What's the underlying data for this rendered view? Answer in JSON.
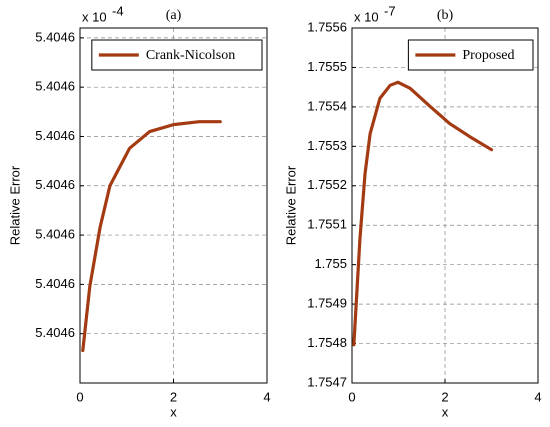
{
  "chart_data": [
    {
      "type": "line",
      "title": "(a)",
      "xlabel": "x",
      "ylabel": "Relative Error",
      "axis_multiplier": {
        "base": "x 10",
        "exponent": "-4"
      },
      "x": [
        0.06,
        0.21,
        0.43,
        0.64,
        1.06,
        1.49,
        2.0,
        2.55,
        3.0
      ],
      "series": [
        {
          "name": "Crank-Nicolson",
          "color": "#a33a12",
          "values": [
            5.4045566,
            5.4045696,
            5.4045816,
            5.40459,
            5.4045976,
            5.404601,
            5.4046024,
            5.404603,
            5.404603
          ]
        }
      ],
      "xlim": [
        0,
        4
      ],
      "xticks": [
        0,
        2,
        4
      ],
      "ylim": [
        5.40455,
        5.404622
      ],
      "yticks": [
        {
          "value": 5.40456,
          "label": "5.4046"
        },
        {
          "value": 5.40457,
          "label": "5.4046"
        },
        {
          "value": 5.40458,
          "label": "5.4046"
        },
        {
          "value": 5.40459,
          "label": "5.4046"
        },
        {
          "value": 5.4046,
          "label": "5.4046"
        },
        {
          "value": 5.40461,
          "label": "5.4046"
        },
        {
          "value": 5.40462,
          "label": "5.4046"
        }
      ],
      "grid": true,
      "legend": "upper right"
    },
    {
      "type": "line",
      "title": "(b)",
      "xlabel": "x",
      "ylabel": "Relative Error",
      "axis_multiplier": {
        "base": "x 10",
        "exponent": "-7"
      },
      "x": [
        0.04,
        0.17,
        0.28,
        0.39,
        0.6,
        0.82,
        0.99,
        1.25,
        1.68,
        2.1,
        2.53,
        3.0
      ],
      "series": [
        {
          "name": "Proposed",
          "color": "#a33a12",
          "values": [
            1.7547969,
            1.7550646,
            1.7552303,
            1.7553323,
            1.7554216,
            1.7554547,
            1.7554624,
            1.7554471,
            1.7554012,
            1.7553578,
            1.7553247,
            1.7552915
          ]
        }
      ],
      "xlim": [
        0,
        4
      ],
      "xticks": [
        0,
        2,
        4
      ],
      "ylim": [
        1.7547,
        1.7556
      ],
      "yticks": [
        1.7547,
        1.7548,
        1.7549,
        1.755,
        1.7551,
        1.7552,
        1.7553,
        1.7554,
        1.7555,
        1.7556
      ],
      "grid": true,
      "legend": "upper right"
    }
  ]
}
